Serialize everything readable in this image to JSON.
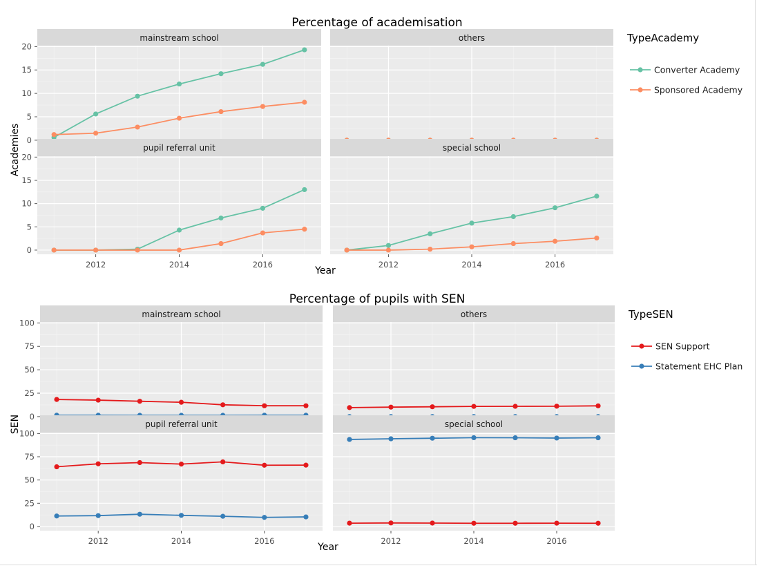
{
  "charts": [
    {
      "title": "Percentage of academisation",
      "xlabel": "Year",
      "ylabel": "Academies",
      "legend_title": "TypeAcademy"
    },
    {
      "title": "Percentage of pupils with SEN",
      "xlabel": "Year",
      "ylabel": "SEN",
      "legend_title": "TypeSEN"
    }
  ],
  "chart_data": [
    {
      "type": "line",
      "title": "Percentage of academisation",
      "xlabel": "Year",
      "ylabel": "Academies",
      "legend_title": "TypeAcademy",
      "legend_position": "right",
      "grid": true,
      "x": [
        2011,
        2012,
        2013,
        2014,
        2015,
        2016,
        2017
      ],
      "xlim": [
        2010.6,
        2017.4
      ],
      "ylim": [
        -0.9,
        20.2
      ],
      "xticks": [
        2012,
        2014,
        2016
      ],
      "yticks": [
        0,
        5,
        10,
        15,
        20
      ],
      "series_meta": [
        {
          "name": "Converter Academy",
          "color": "#66c2a5"
        },
        {
          "name": "Sponsored Academy",
          "color": "#fc8d62"
        }
      ],
      "panels": [
        {
          "label": "mainstream school",
          "series": [
            {
              "name": "Converter Academy",
              "values": [
                0.6,
                5.6,
                9.4,
                12.0,
                14.2,
                16.2,
                19.3
              ]
            },
            {
              "name": "Sponsored Academy",
              "values": [
                1.2,
                1.5,
                2.8,
                4.7,
                6.1,
                7.2,
                8.1
              ]
            }
          ]
        },
        {
          "label": "others",
          "series": [
            {
              "name": "Converter Academy",
              "values": [
                0,
                0,
                0,
                0,
                0,
                0,
                0
              ]
            },
            {
              "name": "Sponsored Academy",
              "values": [
                0,
                0,
                0,
                0,
                0,
                0,
                0
              ]
            }
          ]
        },
        {
          "label": "pupil referral unit",
          "series": [
            {
              "name": "Converter Academy",
              "values": [
                0,
                0,
                0.2,
                4.3,
                6.9,
                9.0,
                13.0
              ]
            },
            {
              "name": "Sponsored Academy",
              "values": [
                0,
                0,
                0,
                0,
                1.4,
                3.7,
                4.5
              ]
            }
          ]
        },
        {
          "label": "special school",
          "series": [
            {
              "name": "Converter Academy",
              "values": [
                0,
                1.0,
                3.5,
                5.8,
                7.2,
                9.1,
                11.6
              ]
            },
            {
              "name": "Sponsored Academy",
              "values": [
                0,
                0,
                0.2,
                0.7,
                1.4,
                1.9,
                2.6
              ]
            }
          ]
        }
      ]
    },
    {
      "type": "line",
      "title": "Percentage of pupils with SEN",
      "xlabel": "Year",
      "ylabel": "SEN",
      "legend_title": "TypeSEN",
      "legend_position": "right",
      "grid": true,
      "x": [
        2011,
        2012,
        2013,
        2014,
        2015,
        2016,
        2017
      ],
      "xlim": [
        2010.6,
        2017.4
      ],
      "ylim": [
        -4.5,
        101
      ],
      "xticks": [
        2012,
        2014,
        2016
      ],
      "yticks": [
        0,
        25,
        50,
        75,
        100
      ],
      "series_meta": [
        {
          "name": "SEN Support",
          "color": "#e41a1c"
        },
        {
          "name": "Statement EHC Plan",
          "color": "#377eb8"
        }
      ],
      "panels": [
        {
          "label": "mainstream school",
          "series": [
            {
              "name": "SEN Support",
              "values": [
                18.3,
                17.6,
                16.4,
                15.3,
                12.6,
                11.6,
                11.6
              ]
            },
            {
              "name": "Statement EHC Plan",
              "values": [
                1.5,
                1.5,
                1.4,
                1.4,
                1.4,
                1.5,
                1.5
              ]
            }
          ]
        },
        {
          "label": "others",
          "series": [
            {
              "name": "SEN Support",
              "values": [
                9.6,
                10.1,
                10.5,
                10.9,
                11.0,
                11.1,
                11.5
              ]
            },
            {
              "name": "Statement EHC Plan",
              "values": [
                0,
                0,
                0,
                0,
                0,
                0,
                0
              ]
            }
          ]
        },
        {
          "label": "pupil referral unit",
          "series": [
            {
              "name": "SEN Support",
              "values": [
                64.2,
                67.4,
                68.7,
                67.1,
                69.5,
                65.9,
                66.0
              ]
            },
            {
              "name": "Statement EHC Plan",
              "values": [
                11.3,
                11.7,
                13.2,
                12.0,
                11.0,
                9.8,
                10.3
              ]
            }
          ]
        },
        {
          "label": "special school",
          "series": [
            {
              "name": "SEN Support",
              "values": [
                3.6,
                3.8,
                3.7,
                3.5,
                3.5,
                3.6,
                3.5
              ]
            },
            {
              "name": "Statement EHC Plan",
              "values": [
                93.6,
                94.3,
                94.9,
                95.5,
                95.4,
                95.1,
                95.4
              ]
            }
          ]
        }
      ]
    }
  ]
}
